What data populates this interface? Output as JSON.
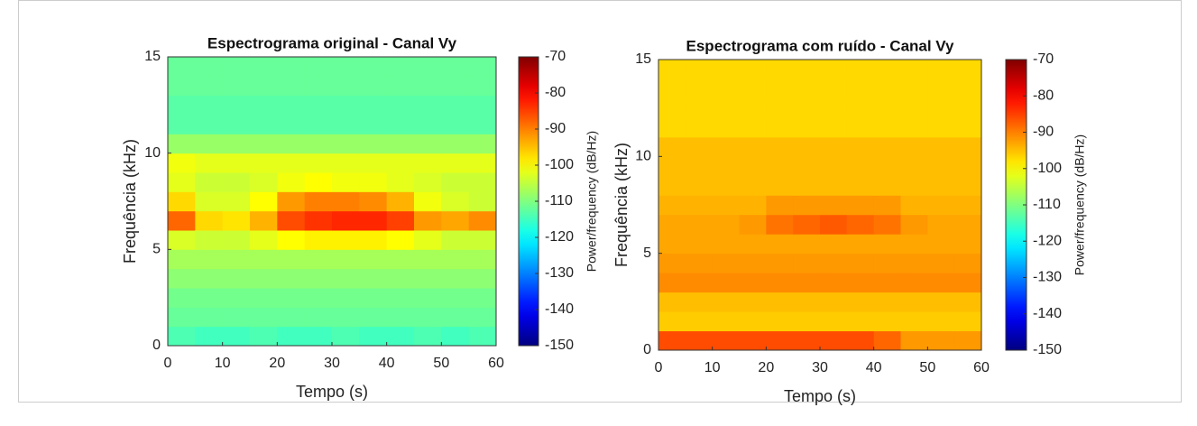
{
  "chart_data": [
    {
      "type": "heatmap",
      "title": "Espectrograma original - Canal Vy",
      "xlabel": "Tempo (s)",
      "ylabel": "Frequência (kHz)",
      "colorbar_label": "Power/frequency (dB/Hz)",
      "colormap": "jet",
      "xlim": [
        0,
        60
      ],
      "xticks": [
        0,
        10,
        20,
        30,
        40,
        50,
        60
      ],
      "ylim": [
        0,
        15
      ],
      "yticks": [
        0,
        5,
        10,
        15
      ],
      "clim": [
        -150,
        -70
      ],
      "cticks": [
        -150,
        -140,
        -130,
        -120,
        -110,
        -100,
        -90,
        -80,
        -70
      ],
      "x_bins": [
        0,
        5,
        10,
        15,
        20,
        25,
        30,
        35,
        40,
        45,
        50,
        55,
        60
      ],
      "y_bins": [
        0,
        1,
        2,
        3,
        4,
        5,
        6,
        7,
        8,
        9,
        10,
        11,
        12,
        13,
        14,
        15
      ],
      "z": [
        [
          -114,
          -115,
          -115,
          -114,
          -115,
          -115,
          -114,
          -115,
          -115,
          -114,
          -115,
          -114
        ],
        [
          -112,
          -112,
          -112,
          -112,
          -112,
          -112,
          -112,
          -112,
          -112,
          -112,
          -112,
          -112
        ],
        [
          -111,
          -111,
          -111,
          -111,
          -111,
          -111,
          -111,
          -111,
          -111,
          -111,
          -111,
          -111
        ],
        [
          -109,
          -109,
          -109,
          -109,
          -109,
          -109,
          -109,
          -109,
          -109,
          -109,
          -109,
          -109
        ],
        [
          -107,
          -107,
          -107,
          -107,
          -107,
          -107,
          -107,
          -107,
          -107,
          -107,
          -107,
          -107
        ],
        [
          -103,
          -104,
          -104,
          -102,
          -100,
          -99,
          -99,
          -99,
          -100,
          -102,
          -104,
          -104
        ],
        [
          -88,
          -97,
          -98,
          -94,
          -86,
          -84,
          -83,
          -83,
          -85,
          -92,
          -93,
          -91
        ],
        [
          -97,
          -103,
          -103,
          -100,
          -92,
          -90,
          -90,
          -91,
          -94,
          -101,
          -103,
          -104
        ],
        [
          -102,
          -104,
          -104,
          -103,
          -101,
          -100,
          -101,
          -101,
          -102,
          -103,
          -104,
          -104
        ],
        [
          -101,
          -102,
          -102,
          -102,
          -102,
          -102,
          -102,
          -102,
          -102,
          -102,
          -102,
          -102
        ],
        [
          -108,
          -108,
          -108,
          -108,
          -108,
          -108,
          -108,
          -108,
          -108,
          -108,
          -108,
          -108
        ],
        [
          -113,
          -113,
          -113,
          -113,
          -113,
          -113,
          -113,
          -113,
          -113,
          -113,
          -113,
          -113
        ],
        [
          -113,
          -113,
          -113,
          -113,
          -113,
          -113,
          -113,
          -113,
          -113,
          -113,
          -113,
          -113
        ],
        [
          -112,
          -112,
          -112,
          -112,
          -112,
          -112,
          -112,
          -112,
          -112,
          -112,
          -112,
          -112
        ],
        [
          -112,
          -112,
          -112,
          -112,
          -112,
          -112,
          -112,
          -112,
          -112,
          -112,
          -112,
          -112
        ]
      ]
    },
    {
      "type": "heatmap",
      "title": "Espectrograma com ruído - Canal Vy",
      "xlabel": "Tempo (s)",
      "ylabel": "Frequência (kHz)",
      "colorbar_label": "Power/frequency (dB/Hz)",
      "colormap": "jet",
      "xlim": [
        0,
        60
      ],
      "xticks": [
        0,
        10,
        20,
        30,
        40,
        50,
        60
      ],
      "ylim": [
        0,
        15
      ],
      "yticks": [
        0,
        5,
        10,
        15
      ],
      "clim": [
        -150,
        -70
      ],
      "cticks": [
        -150,
        -140,
        -130,
        -120,
        -110,
        -100,
        -90,
        -80,
        -70
      ],
      "x_bins": [
        0,
        5,
        10,
        15,
        20,
        25,
        30,
        35,
        40,
        45,
        50,
        55,
        60
      ],
      "y_bins": [
        0,
        1,
        2,
        3,
        4,
        5,
        6,
        7,
        8,
        9,
        10,
        11,
        12,
        13,
        14,
        15
      ],
      "z": [
        [
          -86,
          -86,
          -86,
          -86,
          -86,
          -86,
          -86,
          -86,
          -88,
          -92,
          -92,
          -92
        ],
        [
          -96,
          -96,
          -96,
          -96,
          -96,
          -96,
          -96,
          -96,
          -96,
          -96,
          -96,
          -96
        ],
        [
          -95,
          -95,
          -95,
          -95,
          -95,
          -95,
          -95,
          -95,
          -95,
          -95,
          -95,
          -95
        ],
        [
          -91,
          -91,
          -91,
          -91,
          -91,
          -91,
          -91,
          -91,
          -91,
          -91,
          -91,
          -91
        ],
        [
          -92,
          -92,
          -92,
          -92,
          -92,
          -92,
          -92,
          -92,
          -92,
          -92,
          -92,
          -92
        ],
        [
          -93,
          -93,
          -93,
          -93,
          -93,
          -93,
          -93,
          -93,
          -93,
          -93,
          -93,
          -93
        ],
        [
          -93,
          -93,
          -93,
          -92,
          -89,
          -88,
          -87,
          -88,
          -89,
          -92,
          -93,
          -93
        ],
        [
          -94,
          -94,
          -94,
          -94,
          -92,
          -92,
          -92,
          -92,
          -92,
          -94,
          -94,
          -94
        ],
        [
          -95,
          -95,
          -95,
          -95,
          -95,
          -95,
          -95,
          -95,
          -95,
          -95,
          -95,
          -95
        ],
        [
          -95,
          -95,
          -95,
          -95,
          -95,
          -95,
          -95,
          -95,
          -95,
          -95,
          -95,
          -95
        ],
        [
          -95,
          -95,
          -95,
          -95,
          -95,
          -95,
          -95,
          -95,
          -95,
          -95,
          -95,
          -95
        ],
        [
          -97,
          -97,
          -97,
          -97,
          -97,
          -97,
          -97,
          -97,
          -97,
          -97,
          -97,
          -97
        ],
        [
          -97,
          -97,
          -97,
          -97,
          -97,
          -97,
          -97,
          -97,
          -97,
          -97,
          -97,
          -97
        ],
        [
          -97,
          -97,
          -97,
          -97,
          -97,
          -97,
          -97,
          -97,
          -97,
          -97,
          -97,
          -97
        ],
        [
          -97,
          -97,
          -97,
          -97,
          -97,
          -97,
          -97,
          -97,
          -97,
          -97,
          -97,
          -97
        ]
      ]
    }
  ]
}
